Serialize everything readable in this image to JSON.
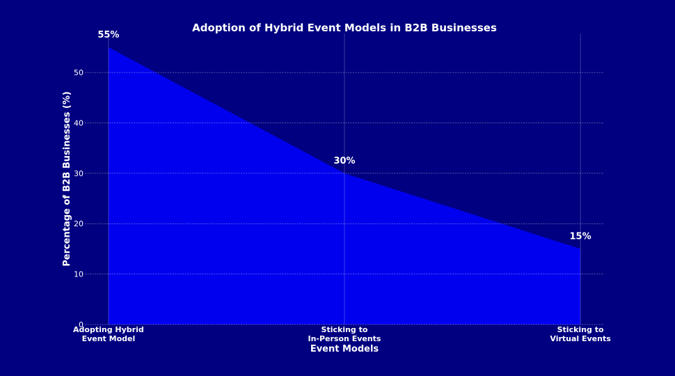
{
  "chart_data": {
    "type": "area",
    "title": "Adoption of Hybrid Event Models in B2B Businesses",
    "x_label": "Event Models",
    "y_label": "Percentage of B2B Businesses (%)",
    "categories": [
      "Adopting Hybrid\nEvent Model",
      "Sticking to\nIn-Person Events",
      "Sticking to\nVirtual Events"
    ],
    "values": [
      55,
      30,
      15
    ],
    "value_labels": [
      "55%",
      "30%",
      "15%"
    ],
    "color": "#0000ee",
    "background": "#000080",
    "ylim": [
      0,
      57.75
    ],
    "yticks": [
      0,
      10,
      20,
      30,
      40,
      50
    ],
    "grid": true
  }
}
